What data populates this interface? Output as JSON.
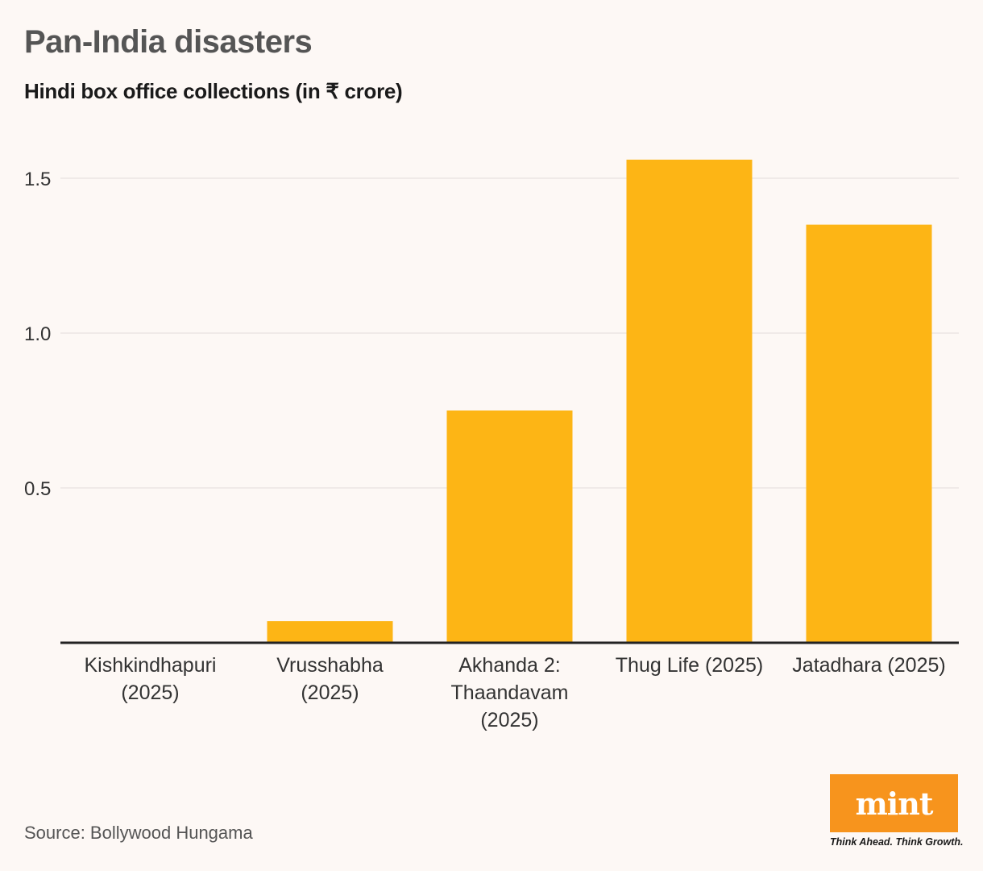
{
  "header": {
    "title": "Pan-India disasters",
    "subtitle": "Hindi box office collections (in ₹ crore)"
  },
  "footer": {
    "source": "Source: Bollywood Hungama"
  },
  "logo": {
    "name": "mint",
    "tagline": "Think Ahead. Think Growth.",
    "color": "#f7941d"
  },
  "chart_data": {
    "type": "bar",
    "title": "Pan-India disasters",
    "subtitle": "Hindi box office collections (in ₹ crore)",
    "xlabel": "",
    "ylabel": "",
    "categories": [
      [
        "Kishkindhapuri",
        "(2025)"
      ],
      [
        "Vrusshabha",
        "(2025)"
      ],
      [
        "Akhanda 2:",
        "Thaandavam",
        "(2025)"
      ],
      [
        "Thug Life (2025)"
      ],
      [
        "Jatadhara (2025)"
      ]
    ],
    "values": [
      0,
      0.07,
      0.75,
      1.56,
      1.35
    ],
    "ylim": [
      0,
      1.5625
    ],
    "yticks": [
      0.5,
      1.0,
      1.5
    ],
    "ytick_labels": [
      "0.5",
      "1.0",
      "1.5"
    ],
    "grid": true,
    "bar_color": "#fdb515"
  }
}
